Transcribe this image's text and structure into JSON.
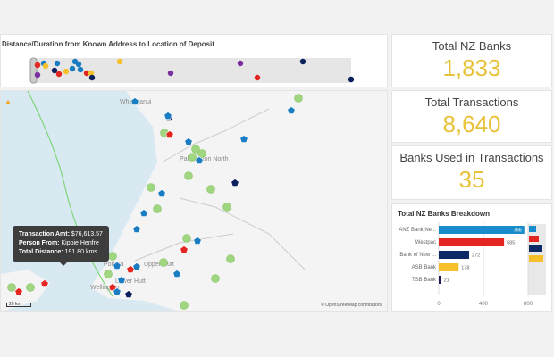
{
  "distance_chart": {
    "title": "Distance/Duration from Known Address to Location of Deposit"
  },
  "map": {
    "labels": [
      "Whanganui",
      "Palmerston North",
      "Upper Hutt",
      "Porirua",
      "Lower Hutt",
      "Wellington"
    ],
    "tooltip": {
      "amt_label": "Transaction Amt:",
      "amt": "$76,613.57",
      "person_label": "Person From:",
      "person": "Kippie Henfre",
      "dist_label": "Total Distance:",
      "dist": "191.80 kms"
    },
    "attribution": "© OpenStreetMap contributors",
    "scale": "20 km",
    "colors": {
      "green": "#9fd67f",
      "blue": "#1a7cc1",
      "red": "#e3261f",
      "navy": "#0b1f5c"
    }
  },
  "kpis": [
    {
      "label": "Total NZ Banks",
      "value": "1,833"
    },
    {
      "label": "Total Transactions",
      "value": "8,640"
    },
    {
      "label": "Banks Used in Transactions",
      "value": "35"
    }
  ],
  "chart_data": {
    "type": "bar",
    "title": "Total NZ Banks Breakdown",
    "categories": [
      "ANZ Bank Ne...",
      "Westpac",
      "Bank of New ...",
      "ASB Bank",
      "TSB Bank"
    ],
    "values": [
      766,
      585,
      272,
      178,
      21
    ],
    "colors": [
      "#1a8ccc",
      "#e3261f",
      "#0b2a66",
      "#f5c02a",
      "#1b1b5c"
    ],
    "xticks": [
      0,
      400,
      800
    ],
    "xlim": [
      0,
      800
    ]
  }
}
